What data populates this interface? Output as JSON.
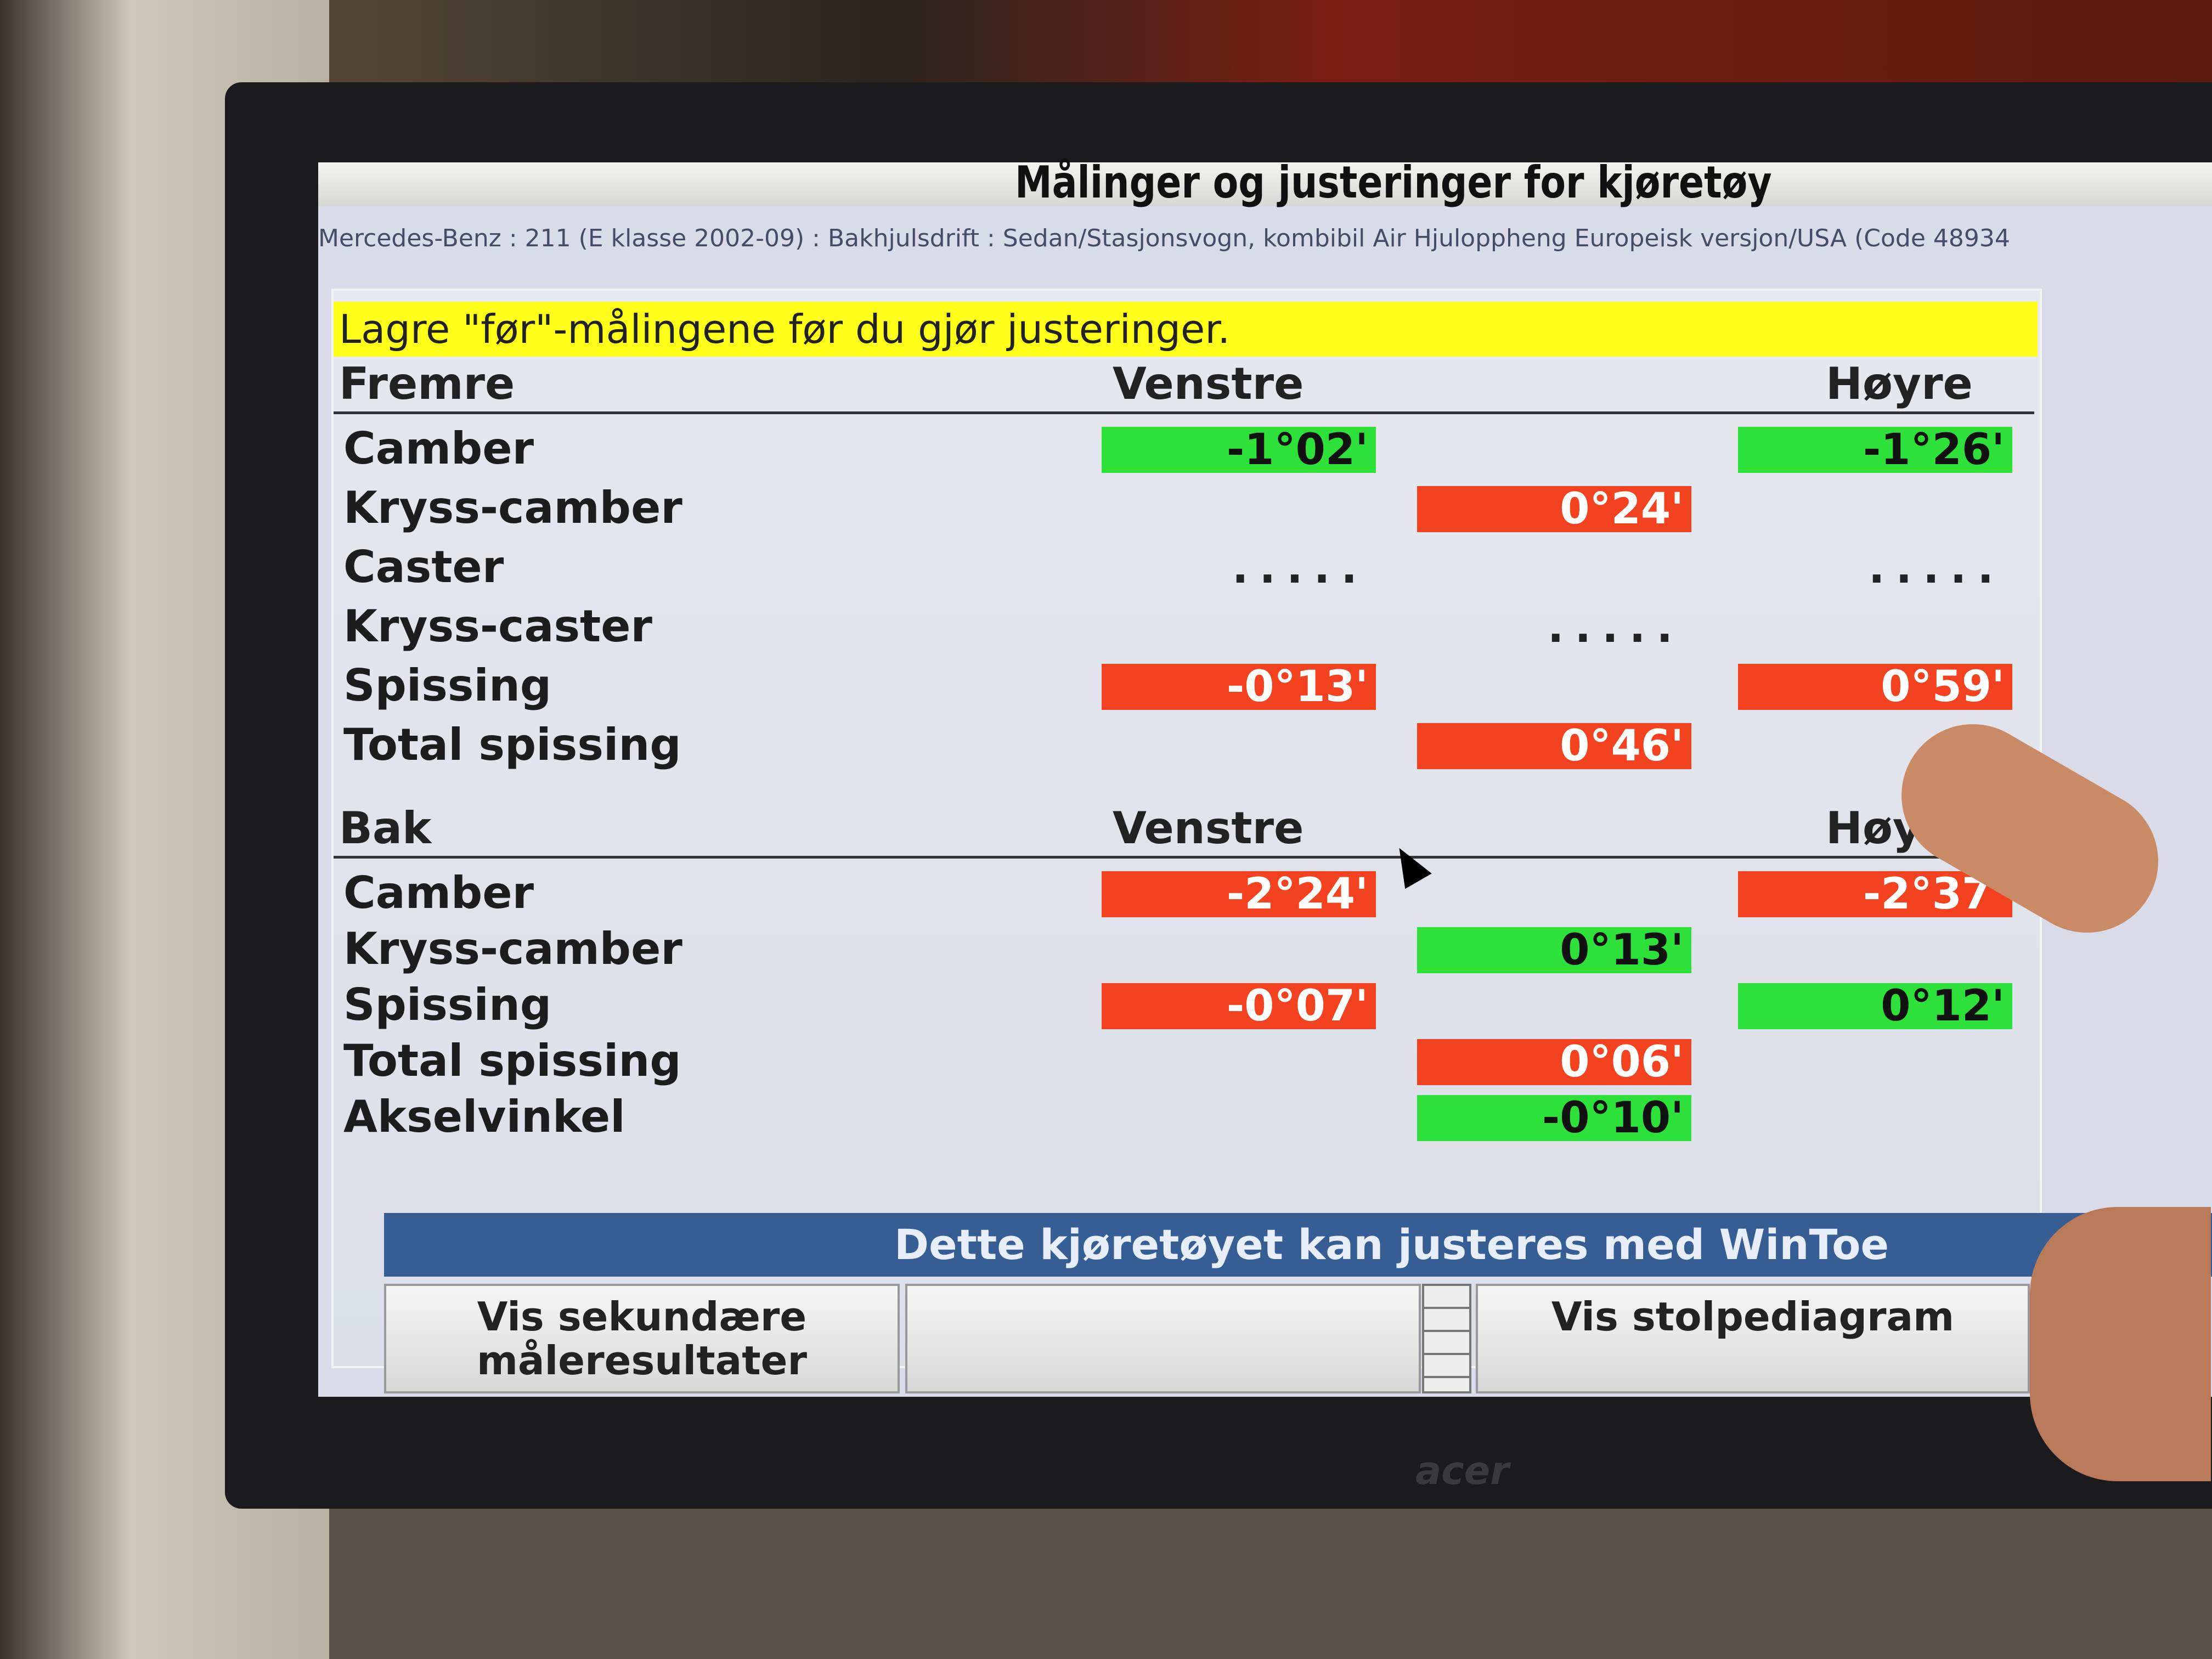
{
  "window": {
    "title": "Målinger og justeringer for kjøretøy",
    "vehicle_line1": "Mercedes-Benz : 211 (E klasse 2002-09) : Bakhjulsdrift : Sedan/Stasjonsvogn, kombibil Air Hjuloppheng Europeisk versjon/USA (Code 489",
    "vehicle_line2": "34"
  },
  "warning": "Lagre \"før\"-målingene før du gjør justeringer.",
  "front": {
    "title": "Fremre",
    "left_header": "Venstre",
    "right_header": "Høyre",
    "rows": [
      {
        "label": "Camber",
        "left": {
          "value": "-1°02'",
          "status": "green"
        },
        "right": {
          "value": "-1°26'",
          "status": "green"
        }
      },
      {
        "label": "Kryss-camber",
        "mid": {
          "value": "0°24'",
          "status": "red"
        }
      },
      {
        "label": "Caster",
        "left": {
          "value": ".....",
          "status": "dots"
        },
        "right": {
          "value": ".....",
          "status": "dots"
        }
      },
      {
        "label": "Kryss-caster",
        "mid": {
          "value": ".....",
          "status": "dots"
        }
      },
      {
        "label": "Spissing",
        "left": {
          "value": "-0°13'",
          "status": "red"
        },
        "right": {
          "value": "0°59'",
          "status": "red"
        }
      },
      {
        "label": "Total spissing",
        "mid": {
          "value": "0°46'",
          "status": "red"
        }
      }
    ]
  },
  "rear": {
    "title": "Bak",
    "left_header": "Venstre",
    "right_header": "Høyre",
    "rows": [
      {
        "label": "Camber",
        "left": {
          "value": "-2°24'",
          "status": "red"
        },
        "right": {
          "value": "-2°37'",
          "status": "red"
        }
      },
      {
        "label": "Kryss-camber",
        "mid": {
          "value": "0°13'",
          "status": "green"
        }
      },
      {
        "label": "Spissing",
        "left": {
          "value": "-0°07'",
          "status": "red"
        },
        "right": {
          "value": "0°12'",
          "status": "green"
        }
      },
      {
        "label": "Total spissing",
        "mid": {
          "value": "0°06'",
          "status": "red"
        }
      },
      {
        "label": "Akselvinkel",
        "mid": {
          "value": "-0°10'",
          "status": "green"
        }
      }
    ]
  },
  "info_bar": "Dette kjøretøyet kan justeres med WinToe",
  "buttons": {
    "secondary": "Vis sekundære måleresultater",
    "empty": "",
    "bar_chart": "Vis stolpediagram"
  },
  "monitor_brand": "acer",
  "colors": {
    "ok": "#2ee03a",
    "out_of_spec": "#f2421f",
    "warning": "#ffff1a",
    "info_bar": "#365d94"
  }
}
